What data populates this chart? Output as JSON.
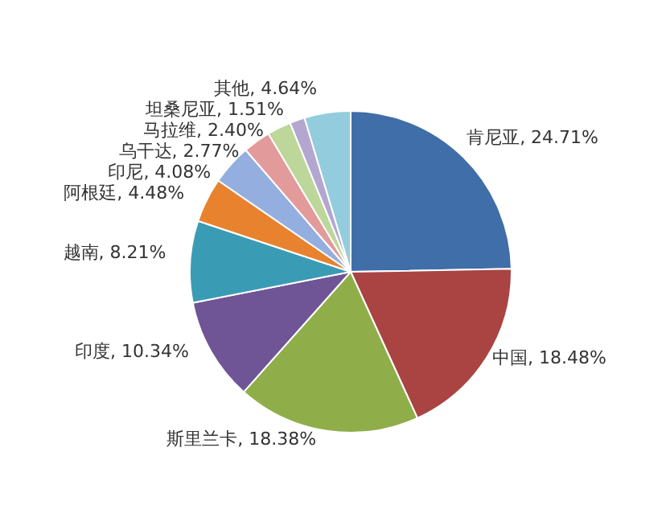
{
  "chart_data": {
    "type": "pie",
    "categories": [
      "肯尼亚",
      "中国",
      "斯里兰卡",
      "印度",
      "越南",
      "阿根廷",
      "印尼",
      "乌干达",
      "马拉维",
      "坦桑尼亚",
      "其他"
    ],
    "values": [
      24.71,
      18.48,
      18.38,
      10.34,
      8.21,
      4.48,
      4.08,
      2.77,
      2.4,
      1.51,
      4.64
    ],
    "value_labels": [
      "24.71%",
      "18.48%",
      "18.38%",
      "10.34%",
      "8.21%",
      "4.48%",
      "4.08%",
      "2.77%",
      "2.40%",
      "1.51%",
      "4.64%"
    ],
    "colors": [
      "#3f6ea8",
      "#a94442",
      "#8fae4a",
      "#6f5496",
      "#3a9bb5",
      "#e8822e",
      "#95aee0",
      "#e29a9a",
      "#bdd79a",
      "#b3a6cf",
      "#93cddd"
    ],
    "legend": false
  }
}
